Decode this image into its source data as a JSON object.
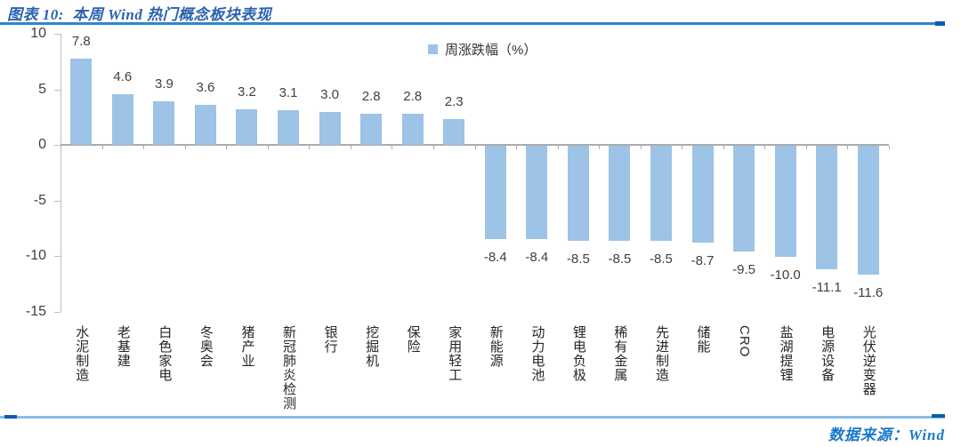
{
  "header": {
    "title": "图表 10:  本周 Wind 热门概念板块表现"
  },
  "footer": {
    "source": "数据来源：Wind"
  },
  "chart_data": {
    "type": "bar",
    "title": "本周 Wind 热门概念板块表现",
    "legend": [
      "周涨跌幅（%）"
    ],
    "legend_position": "top-center",
    "categories": [
      "水泥制造",
      "老基建",
      "白色家电",
      "冬奥会",
      "猪产业",
      "新冠肺炎检测",
      "银行",
      "挖掘机",
      "保险",
      "家用轻工",
      "新能源",
      "动力电池",
      "锂电负极",
      "稀有金属",
      "先进制造",
      "储能",
      "CRO",
      "盐湖提锂",
      "电源设备",
      "光伏逆变器"
    ],
    "values": [
      7.8,
      4.6,
      3.9,
      3.6,
      3.2,
      3.1,
      3.0,
      2.8,
      2.8,
      2.3,
      -8.4,
      -8.4,
      -8.5,
      -8.5,
      -8.5,
      -8.7,
      -9.5,
      -10.0,
      -11.1,
      -11.6
    ],
    "value_labels": [
      "7.8",
      "4.6",
      "3.9",
      "3.6",
      "3.2",
      "3.1",
      "3.0",
      "2.8",
      "2.8",
      "2.3",
      "-8.4",
      "-8.4",
      "-8.5",
      "-8.5",
      "-8.5",
      "-8.7",
      "-9.5",
      "-10.0",
      "-11.1",
      "-11.6"
    ],
    "yticks": [
      10,
      5,
      0,
      -5,
      -10,
      -15
    ],
    "ylim": [
      -15,
      10
    ],
    "grid": false,
    "xlabel": "",
    "ylabel": "",
    "bar_color": "#9DC3E6"
  },
  "colors": {
    "bar": "#9DC3E6",
    "title_blue": "#2B62AE",
    "source_blue": "#1878C8",
    "rule_top": "#2E86C8",
    "rule_bottom": "#8BBEE6",
    "rule_cap": "#0E5CB2",
    "axis_gray": "#BFBFBF",
    "zero_line": "#ABABAB",
    "label_text": "#404040"
  }
}
